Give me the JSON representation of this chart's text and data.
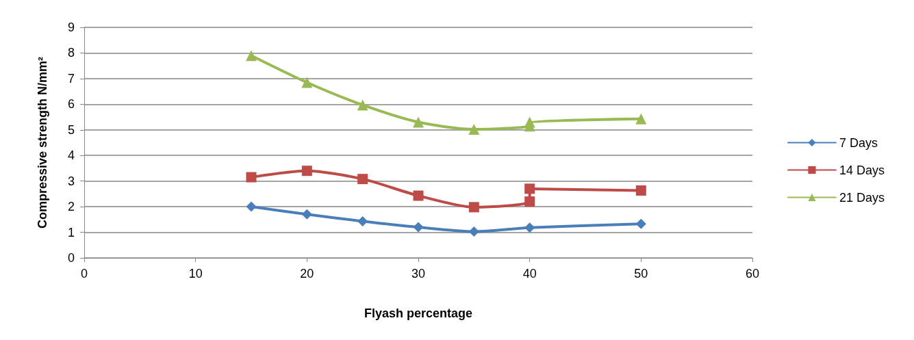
{
  "chart_data": {
    "type": "line",
    "xlabel": "Flyash percentage",
    "ylabel": "Compressive strength N/mm²",
    "xlim": [
      0,
      60
    ],
    "xticks": [
      0,
      10,
      20,
      30,
      40,
      50,
      60
    ],
    "ylim": [
      0,
      9
    ],
    "yticks": [
      0,
      1,
      2,
      3,
      4,
      5,
      6,
      7,
      8,
      9
    ],
    "grid": "y",
    "legend": "right",
    "line_style": "solid",
    "series": [
      {
        "name": "7 Days",
        "color": "#4a7ebb",
        "marker": "diamond",
        "x": [
          15,
          20,
          25,
          30,
          35,
          40,
          50
        ],
        "values": [
          2.0,
          1.7,
          1.43,
          1.2,
          1.03,
          1.18,
          1.33
        ]
      },
      {
        "name": "14 Days",
        "color": "#be4b48",
        "marker": "square",
        "x": [
          15,
          20,
          25,
          30,
          35,
          40,
          40,
          50
        ],
        "values": [
          3.15,
          3.4,
          3.08,
          2.43,
          1.98,
          2.2,
          2.7,
          2.63
        ]
      },
      {
        "name": "21 Days",
        "color": "#98b954",
        "marker": "triangle",
        "x": [
          15,
          20,
          25,
          30,
          35,
          40,
          40,
          50
        ],
        "values": [
          7.9,
          6.85,
          5.97,
          5.3,
          5.02,
          5.15,
          5.3,
          5.43
        ]
      }
    ]
  }
}
